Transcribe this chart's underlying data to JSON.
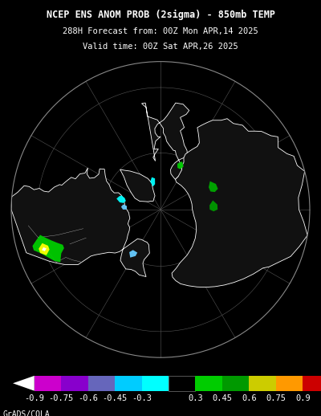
{
  "title_line1": "NCEP ENS ANOM PROB (2sigma) - 850mb TEMP",
  "title_line2": "288H Forecast from: 00Z Mon APR,14 2025",
  "title_line3": "Valid time: 00Z Sat APR,26 2025",
  "background_color": "#000000",
  "text_color": "#ffffff",
  "colorbar_labels": [
    "-0.9",
    "-0.75",
    "-0.6",
    "-0.45",
    "-0.3",
    "0.3",
    "0.45",
    "0.6",
    "0.75",
    "0.9"
  ],
  "cb_colors_neg": [
    "#cc00cc",
    "#8800cc",
    "#6666bb",
    "#00ccff",
    "#00ffff"
  ],
  "cb_colors_pos": [
    "#00cc00",
    "#009900",
    "#cccc00",
    "#ff9900",
    "#cc0000"
  ],
  "footer_text": "GrADS/COLA",
  "title_fontsize": 8.5,
  "subtitle_fontsize": 7.5,
  "colorbar_label_fontsize": 7.5,
  "footer_fontsize": 7.0
}
